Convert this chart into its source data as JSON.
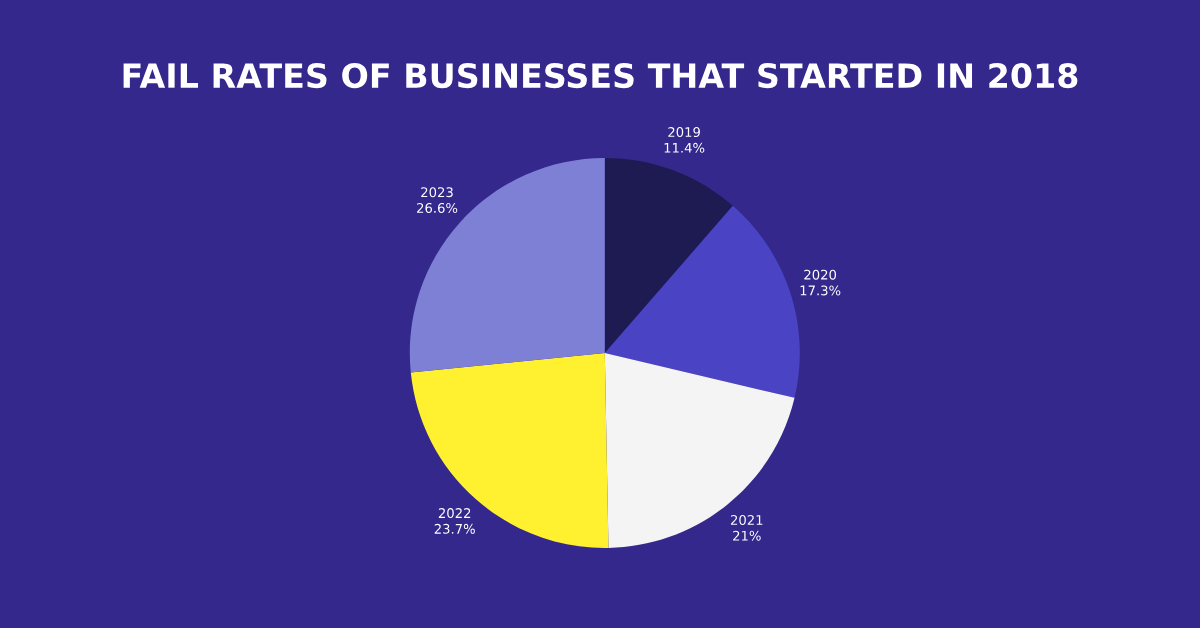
{
  "chart_data": {
    "type": "pie",
    "title": "FAIL RATES OF BUSINESSES THAT STARTED IN 2018",
    "categories": [
      "2019",
      "2020",
      "2021",
      "2022",
      "2023"
    ],
    "values": [
      11.4,
      17.3,
      21,
      23.7,
      26.6
    ],
    "value_labels": [
      "11.4%",
      "17.3%",
      "21%",
      "23.7%",
      "26.6%"
    ],
    "colors": [
      "#1e1a52",
      "#4a44c4",
      "#f4f4f4",
      "#fff12f",
      "#7e80d6"
    ]
  }
}
